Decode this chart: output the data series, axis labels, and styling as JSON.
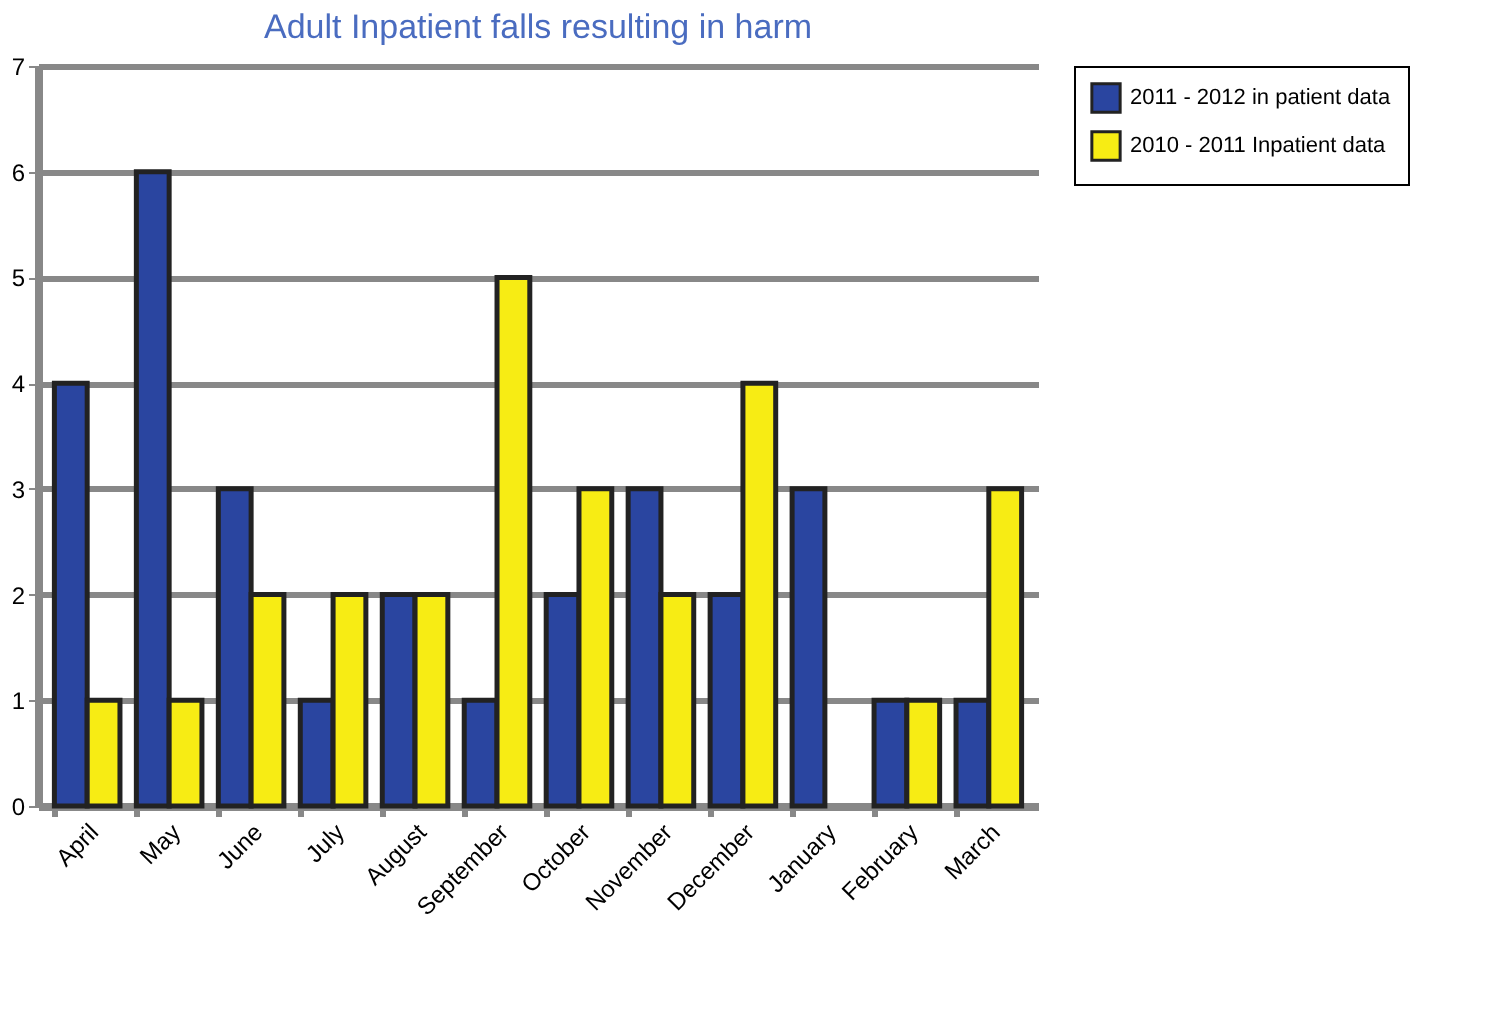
{
  "chart_data": {
    "type": "bar",
    "title": "Adult Inpatient falls resulting in harm",
    "categories": [
      "April",
      "May",
      "June",
      "July",
      "August",
      "September",
      "October",
      "November",
      "December",
      "January",
      "February",
      "March"
    ],
    "series": [
      {
        "name": "2011 - 2012 in patient data",
        "color": "#2a45a0",
        "values": [
          4,
          6,
          3,
          1,
          2,
          1,
          2,
          3,
          2,
          3,
          1,
          1
        ]
      },
      {
        "name": "2010 - 2011 Inpatient data",
        "color": "#f7ec14",
        "values": [
          1,
          1,
          2,
          2,
          2,
          5,
          3,
          2,
          4,
          null,
          1,
          3
        ]
      }
    ],
    "ylim": [
      0,
      7
    ],
    "yticks": [
      0,
      1,
      2,
      3,
      4,
      5,
      6,
      7
    ],
    "grid": "y",
    "legend": "right"
  }
}
